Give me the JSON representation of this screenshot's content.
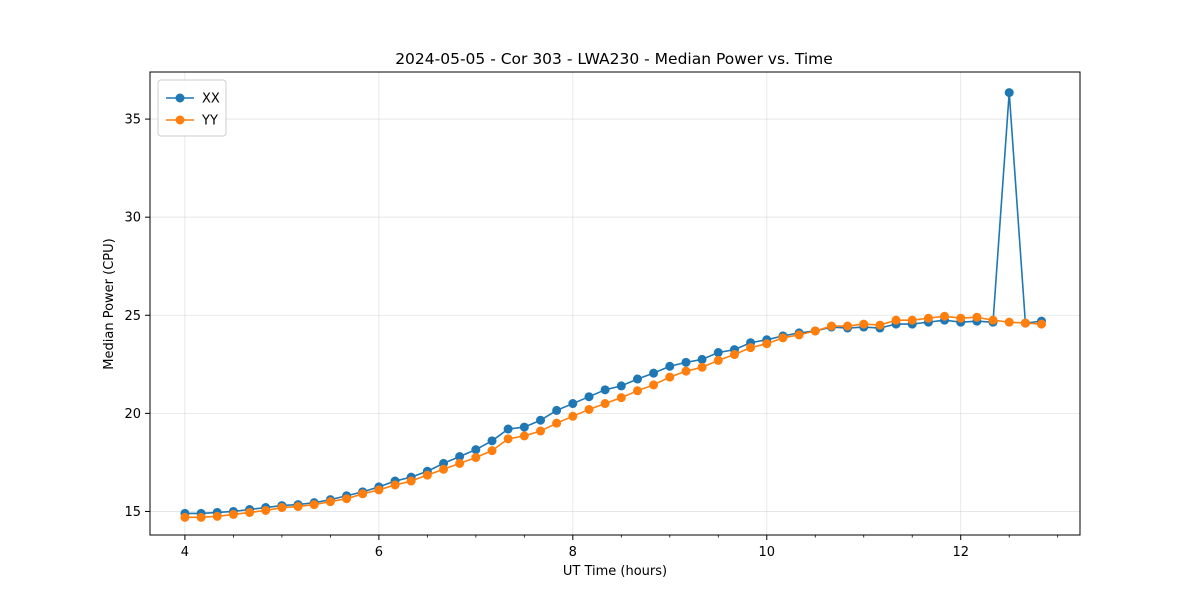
{
  "chart_data": {
    "type": "line",
    "title": "2024-05-05 - Cor 303 - LWA230 - Median Power vs. Time",
    "xlabel": "UT Time (hours)",
    "ylabel": "Median Power (CPU)",
    "xlim": [
      3.64,
      13.23
    ],
    "ylim": [
      13.8,
      37.4
    ],
    "xticks": [
      4,
      6,
      8,
      10,
      12
    ],
    "xtick_labels": [
      "4",
      "6",
      "8",
      "10",
      "12"
    ],
    "yticks": [
      15,
      20,
      25,
      30,
      35
    ],
    "ytick_labels": [
      "15",
      "20",
      "25",
      "30",
      "35"
    ],
    "grid": true,
    "legend_position": "top-left",
    "x": [
      4.0,
      4.167,
      4.333,
      4.5,
      4.667,
      4.833,
      5.0,
      5.167,
      5.333,
      5.5,
      5.667,
      5.833,
      6.0,
      6.167,
      6.333,
      6.5,
      6.667,
      6.833,
      7.0,
      7.167,
      7.333,
      7.5,
      7.667,
      7.833,
      8.0,
      8.167,
      8.333,
      8.5,
      8.667,
      8.833,
      9.0,
      9.167,
      9.333,
      9.5,
      9.667,
      9.833,
      10.0,
      10.167,
      10.333,
      10.5,
      10.667,
      10.833,
      11.0,
      11.167,
      11.333,
      11.5,
      11.667,
      11.833,
      12.0,
      12.167,
      12.333,
      12.5,
      12.667,
      12.833
    ],
    "series": [
      {
        "name": "XX",
        "color": "#1f77b4",
        "values": [
          14.9,
          14.9,
          14.95,
          15.0,
          15.1,
          15.2,
          15.3,
          15.35,
          15.45,
          15.6,
          15.8,
          16.0,
          16.25,
          16.55,
          16.75,
          17.05,
          17.45,
          17.8,
          18.15,
          18.6,
          19.2,
          19.3,
          19.65,
          20.15,
          20.5,
          20.85,
          21.2,
          21.4,
          21.75,
          22.05,
          22.4,
          22.6,
          22.75,
          23.1,
          23.25,
          23.6,
          23.75,
          23.95,
          24.1,
          24.2,
          24.4,
          24.35,
          24.4,
          24.35,
          24.55,
          24.55,
          24.65,
          24.75,
          24.65,
          24.7,
          24.65,
          36.35,
          24.6,
          24.7
        ]
      },
      {
        "name": "YY",
        "color": "#ff7f0e",
        "values": [
          14.7,
          14.7,
          14.75,
          14.85,
          14.95,
          15.05,
          15.2,
          15.25,
          15.35,
          15.5,
          15.65,
          15.9,
          16.1,
          16.35,
          16.55,
          16.85,
          17.15,
          17.45,
          17.75,
          18.1,
          18.7,
          18.85,
          19.1,
          19.5,
          19.85,
          20.2,
          20.5,
          20.8,
          21.15,
          21.45,
          21.85,
          22.15,
          22.35,
          22.7,
          23.0,
          23.35,
          23.55,
          23.85,
          24.0,
          24.2,
          24.45,
          24.45,
          24.55,
          24.5,
          24.75,
          24.75,
          24.85,
          24.95,
          24.85,
          24.9,
          24.75,
          24.65,
          24.6,
          24.55
        ]
      }
    ]
  }
}
